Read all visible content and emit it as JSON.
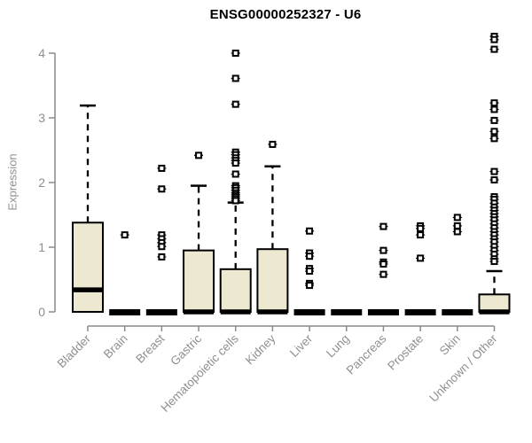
{
  "chart_data": {
    "type": "boxplot",
    "title": "ENSG00000252327 - U6",
    "xlabel": "",
    "ylabel": "Expression",
    "yticks": [
      0,
      1,
      2,
      3,
      4
    ],
    "ylim": [
      0,
      4.35
    ],
    "grid": false,
    "legend": "none",
    "categories": [
      "Bladder",
      "Brain",
      "Breast",
      "Gastric",
      "Hematopoietic cells",
      "Kidney",
      "Liver",
      "Lung",
      "Pancreas",
      "Prostate",
      "Skin",
      "Unknown / Other"
    ],
    "series": [
      {
        "name": "Bladder",
        "q1": 0,
        "median": 0.34,
        "q3": 1.38,
        "whisker_low": 0,
        "whisker_high": 3.19,
        "outliers": []
      },
      {
        "name": "Brain",
        "q1": 0,
        "median": 0,
        "q3": 0,
        "whisker_low": 0,
        "whisker_high": 0,
        "outliers": [
          1.19
        ]
      },
      {
        "name": "Breast",
        "q1": 0,
        "median": 0,
        "q3": 0,
        "whisker_low": 0,
        "whisker_high": 0,
        "outliers": [
          2.22,
          1.9,
          1.19,
          1.13,
          1.07,
          1.01,
          0.85
        ]
      },
      {
        "name": "Gastric",
        "q1": 0,
        "median": 0,
        "q3": 0.95,
        "whisker_low": 0,
        "whisker_high": 1.95,
        "outliers": [
          2.42
        ]
      },
      {
        "name": "Hematopoietic cells",
        "q1": 0,
        "median": 0,
        "q3": 0.66,
        "whisker_low": 0,
        "whisker_high": 1.69,
        "outliers": [
          4.0,
          3.61,
          3.21,
          2.47,
          2.43,
          2.38,
          2.34,
          2.3,
          2.13,
          1.95,
          1.92,
          1.88,
          1.84,
          1.81,
          1.78,
          1.75,
          1.72
        ]
      },
      {
        "name": "Kidney",
        "q1": 0,
        "median": 0,
        "q3": 0.97,
        "whisker_low": 0,
        "whisker_high": 2.25,
        "outliers": [
          2.59
        ]
      },
      {
        "name": "Liver",
        "q1": 0,
        "median": 0,
        "q3": 0,
        "whisker_low": 0,
        "whisker_high": 0,
        "outliers": [
          1.25,
          0.91,
          0.86,
          0.67,
          0.63,
          0.44,
          0.41
        ]
      },
      {
        "name": "Lung",
        "q1": 0,
        "median": 0,
        "q3": 0,
        "whisker_low": 0,
        "whisker_high": 0,
        "outliers": []
      },
      {
        "name": "Pancreas",
        "q1": 0,
        "median": 0,
        "q3": 0,
        "whisker_low": 0,
        "whisker_high": 0,
        "outliers": [
          1.32,
          0.95,
          0.77,
          0.74,
          0.58
        ]
      },
      {
        "name": "Prostate",
        "q1": 0,
        "median": 0,
        "q3": 0,
        "whisker_low": 0,
        "whisker_high": 0,
        "outliers": [
          1.33,
          1.29,
          1.19,
          0.83
        ]
      },
      {
        "name": "Skin",
        "q1": 0,
        "median": 0,
        "q3": 0,
        "whisker_low": 0,
        "whisker_high": 0,
        "outliers": [
          1.46,
          1.33,
          1.24
        ]
      },
      {
        "name": "Unknown / Other",
        "q1": 0,
        "median": 0,
        "q3": 0.27,
        "whisker_low": 0,
        "whisker_high": 0.63,
        "outliers": [
          4.26,
          4.21,
          4.06,
          3.23,
          3.13,
          2.96,
          2.79,
          2.68,
          2.17,
          2.04,
          1.78,
          1.74,
          1.68,
          1.62,
          1.57,
          1.52,
          1.47,
          1.42,
          1.36,
          1.3,
          1.24,
          1.19,
          1.13,
          1.08,
          1.01,
          0.95,
          0.89,
          0.82,
          0.78
        ]
      }
    ],
    "colors": {
      "box_fill": "#EDE8D0",
      "box_border": "#000000",
      "median": "#000000",
      "whisker": "#000000",
      "outlier": "#000000",
      "axis": "#8a8a8a",
      "tick_label": "#8f8f8f",
      "title": "#000000",
      "background": "#ffffff"
    }
  }
}
